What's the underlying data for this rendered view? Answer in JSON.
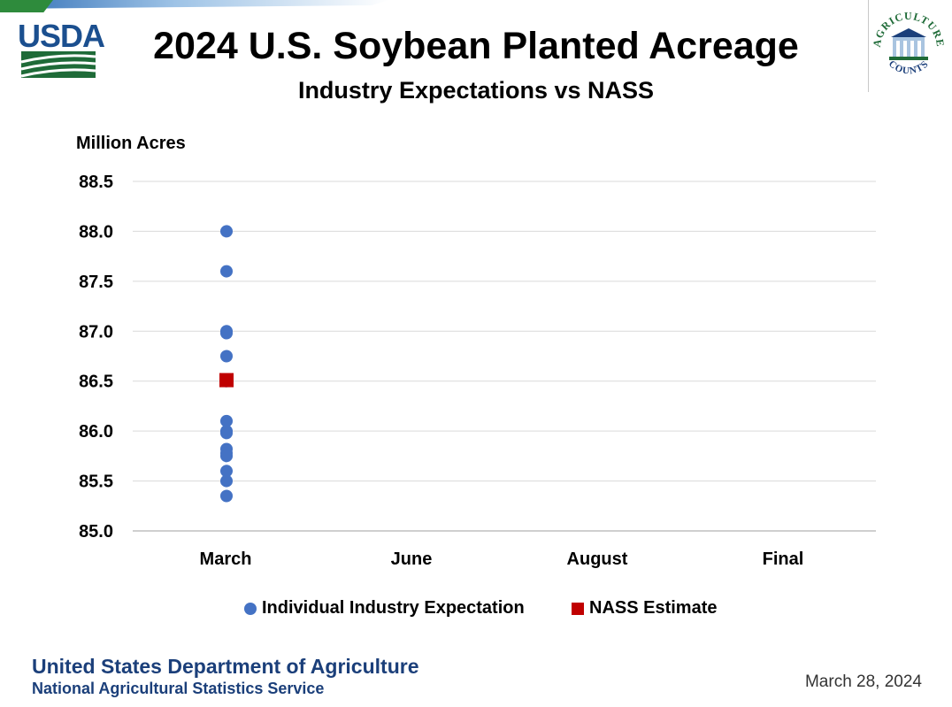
{
  "branding": {
    "usda_logo_text": "USDA",
    "seal_top_text": "AGRICULTURE",
    "seal_bottom_text": "COUNTS",
    "colors": {
      "navy": "#1b3f7a",
      "usda_blue": "#1b4f8f",
      "green": "#2e8b3c"
    }
  },
  "footer": {
    "department": "United States Department of Agriculture",
    "service": "National Agricultural Statistics Service",
    "date": "March 28, 2024"
  },
  "chart_data": {
    "type": "scatter",
    "title": "2024 U.S. Soybean Planted Acreage",
    "subtitle": "Industry Expectations vs NASS",
    "ylabel": "Million Acres",
    "xlabel": "",
    "categories": [
      "March",
      "June",
      "August",
      "Final"
    ],
    "ylim": [
      85.0,
      88.5
    ],
    "yticks": [
      "88.5",
      "88.0",
      "87.5",
      "87.0",
      "86.5",
      "86.0",
      "85.5",
      "85.0"
    ],
    "ytick_values": [
      88.5,
      88.0,
      87.5,
      87.0,
      86.5,
      86.0,
      85.5,
      85.0
    ],
    "grid": true,
    "legend_position": "bottom",
    "series": [
      {
        "name": "Individual Industry Expectation",
        "marker": "circle",
        "color": "#4472c4",
        "points": [
          {
            "category": "March",
            "value": 88.0
          },
          {
            "category": "March",
            "value": 87.6
          },
          {
            "category": "March",
            "value": 87.0
          },
          {
            "category": "March",
            "value": 86.98
          },
          {
            "category": "March",
            "value": 86.75
          },
          {
            "category": "March",
            "value": 86.5
          },
          {
            "category": "March",
            "value": 86.1
          },
          {
            "category": "March",
            "value": 86.0
          },
          {
            "category": "March",
            "value": 85.98
          },
          {
            "category": "March",
            "value": 85.82
          },
          {
            "category": "March",
            "value": 85.78
          },
          {
            "category": "March",
            "value": 85.75
          },
          {
            "category": "March",
            "value": 85.6
          },
          {
            "category": "March",
            "value": 85.5
          },
          {
            "category": "March",
            "value": 85.35
          }
        ]
      },
      {
        "name": "NASS Estimate",
        "marker": "square",
        "color": "#c00000",
        "points": [
          {
            "category": "March",
            "value": 86.51
          }
        ]
      }
    ]
  }
}
